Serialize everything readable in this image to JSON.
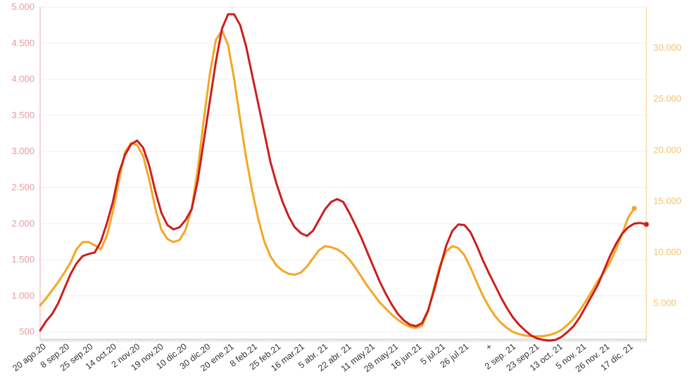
{
  "chart_data": {
    "type": "line",
    "title": "",
    "xlabel": "",
    "ylabel": "",
    "y2label": "",
    "grid": true,
    "legend": "none",
    "x_tick_labels": [
      "20 ago.20",
      "8 sep.20",
      "25 sep.20",
      "14 oct.20",
      "2 nov.20",
      "19 nov.20",
      "10 dic.20",
      "30 dic.20",
      "20 ene.21",
      "8 feb.21",
      "25 feb.21",
      "16 mar.21",
      "5 abr. 21",
      "22 abr. 21",
      "11 may.21",
      "28 may.21",
      "16 jun.21",
      "5 jul.21",
      "26 jul.21",
      "+",
      "2 sep. 21",
      "23 sep.21",
      "13 oct. 21",
      "5 nov. 21",
      "26 nov. 21",
      "17 dic. 21"
    ],
    "y_left": {
      "ticks": [
        500,
        1000,
        1500,
        2000,
        2500,
        3000,
        3500,
        4000,
        4500,
        5000
      ],
      "tick_labels": [
        "500",
        "1.000",
        "1.500",
        "2.000",
        "2.500",
        "3.000",
        "3.500",
        "4.000",
        "4.500",
        "5.000"
      ],
      "ylim": [
        400,
        5000
      ],
      "color": "#e89aa0"
    },
    "y_right": {
      "ticks": [
        5000,
        10000,
        15000,
        20000,
        25000,
        30000
      ],
      "tick_labels": [
        "5.000",
        "10.000",
        "15.000",
        "20.000",
        "25.000",
        "30.000"
      ],
      "ylim": [
        1500,
        34000
      ],
      "color": "#f5c46e"
    },
    "x_range": [
      0,
      100
    ],
    "series": [
      {
        "axis": "left",
        "color": "#cc1e1e",
        "points": [
          [
            0,
            520
          ],
          [
            1,
            650
          ],
          [
            2,
            750
          ],
          [
            3,
            900
          ],
          [
            4,
            1100
          ],
          [
            5,
            1300
          ],
          [
            6,
            1450
          ],
          [
            7,
            1550
          ],
          [
            8,
            1580
          ],
          [
            9,
            1600
          ],
          [
            10,
            1750
          ],
          [
            11,
            2000
          ],
          [
            12,
            2300
          ],
          [
            13,
            2700
          ],
          [
            14,
            2950
          ],
          [
            15,
            3100
          ],
          [
            16,
            3150
          ],
          [
            17,
            3050
          ],
          [
            18,
            2800
          ],
          [
            19,
            2450
          ],
          [
            20,
            2150
          ],
          [
            21,
            1980
          ],
          [
            22,
            1920
          ],
          [
            23,
            1950
          ],
          [
            24,
            2050
          ],
          [
            25,
            2200
          ],
          [
            26,
            2600
          ],
          [
            27,
            3150
          ],
          [
            28,
            3700
          ],
          [
            29,
            4250
          ],
          [
            30,
            4700
          ],
          [
            31,
            4900
          ],
          [
            32,
            4900
          ],
          [
            33,
            4750
          ],
          [
            34,
            4450
          ],
          [
            35,
            4050
          ],
          [
            36,
            3650
          ],
          [
            37,
            3250
          ],
          [
            38,
            2850
          ],
          [
            39,
            2550
          ],
          [
            40,
            2300
          ],
          [
            41,
            2100
          ],
          [
            42,
            1950
          ],
          [
            43,
            1870
          ],
          [
            44,
            1830
          ],
          [
            45,
            1900
          ],
          [
            46,
            2050
          ],
          [
            47,
            2200
          ],
          [
            48,
            2300
          ],
          [
            49,
            2340
          ],
          [
            50,
            2300
          ],
          [
            51,
            2150
          ],
          [
            52,
            1980
          ],
          [
            53,
            1800
          ],
          [
            54,
            1600
          ],
          [
            55,
            1400
          ],
          [
            56,
            1200
          ],
          [
            57,
            1030
          ],
          [
            58,
            880
          ],
          [
            59,
            750
          ],
          [
            60,
            660
          ],
          [
            61,
            600
          ],
          [
            62,
            580
          ],
          [
            63,
            620
          ],
          [
            64,
            800
          ],
          [
            65,
            1080
          ],
          [
            66,
            1400
          ],
          [
            67,
            1700
          ],
          [
            68,
            1900
          ],
          [
            69,
            1990
          ],
          [
            70,
            1980
          ],
          [
            71,
            1880
          ],
          [
            72,
            1700
          ],
          [
            73,
            1500
          ],
          [
            74,
            1320
          ],
          [
            75,
            1150
          ],
          [
            76,
            980
          ],
          [
            77,
            830
          ],
          [
            78,
            700
          ],
          [
            79,
            600
          ],
          [
            80,
            520
          ],
          [
            81,
            450
          ],
          [
            82,
            410
          ],
          [
            83,
            390
          ],
          [
            84,
            380
          ],
          [
            85,
            390
          ],
          [
            86,
            430
          ],
          [
            87,
            500
          ],
          [
            88,
            580
          ],
          [
            89,
            700
          ],
          [
            90,
            850
          ],
          [
            91,
            1000
          ],
          [
            92,
            1150
          ],
          [
            93,
            1350
          ],
          [
            94,
            1550
          ],
          [
            95,
            1720
          ],
          [
            96,
            1860
          ],
          [
            97,
            1950
          ],
          [
            98,
            2000
          ],
          [
            99,
            2010
          ],
          [
            100,
            1990
          ]
        ]
      },
      {
        "axis": "right",
        "color": "#f5a623",
        "points": [
          [
            0,
            4800
          ],
          [
            1,
            5500
          ],
          [
            2,
            6300
          ],
          [
            3,
            7100
          ],
          [
            4,
            8000
          ],
          [
            5,
            9000
          ],
          [
            6,
            10300
          ],
          [
            7,
            11000
          ],
          [
            8,
            11000
          ],
          [
            9,
            10700
          ],
          [
            10,
            10300
          ],
          [
            11,
            11600
          ],
          [
            12,
            14000
          ],
          [
            13,
            17000
          ],
          [
            14,
            19800
          ],
          [
            15,
            20700
          ],
          [
            16,
            20500
          ],
          [
            17,
            19400
          ],
          [
            18,
            17100
          ],
          [
            19,
            14300
          ],
          [
            20,
            12200
          ],
          [
            21,
            11300
          ],
          [
            22,
            11000
          ],
          [
            23,
            11200
          ],
          [
            24,
            12200
          ],
          [
            25,
            14300
          ],
          [
            26,
            18100
          ],
          [
            27,
            23000
          ],
          [
            28,
            27500
          ],
          [
            29,
            30800
          ],
          [
            30,
            31700
          ],
          [
            31,
            30300
          ],
          [
            32,
            27000
          ],
          [
            33,
            23000
          ],
          [
            34,
            19200
          ],
          [
            35,
            16000
          ],
          [
            36,
            13200
          ],
          [
            37,
            11000
          ],
          [
            38,
            9600
          ],
          [
            39,
            8700
          ],
          [
            40,
            8200
          ],
          [
            41,
            7900
          ],
          [
            42,
            7800
          ],
          [
            43,
            8000
          ],
          [
            44,
            8600
          ],
          [
            45,
            9400
          ],
          [
            46,
            10200
          ],
          [
            47,
            10600
          ],
          [
            48,
            10500
          ],
          [
            49,
            10300
          ],
          [
            50,
            9900
          ],
          [
            51,
            9300
          ],
          [
            52,
            8500
          ],
          [
            53,
            7600
          ],
          [
            54,
            6700
          ],
          [
            55,
            5900
          ],
          [
            56,
            5100
          ],
          [
            57,
            4500
          ],
          [
            58,
            3900
          ],
          [
            59,
            3400
          ],
          [
            60,
            3000
          ],
          [
            61,
            2700
          ],
          [
            62,
            2600
          ],
          [
            63,
            2800
          ],
          [
            64,
            4200
          ],
          [
            65,
            6600
          ],
          [
            66,
            8800
          ],
          [
            67,
            10100
          ],
          [
            68,
            10600
          ],
          [
            69,
            10400
          ],
          [
            70,
            9700
          ],
          [
            71,
            8500
          ],
          [
            72,
            7100
          ],
          [
            73,
            5800
          ],
          [
            74,
            4700
          ],
          [
            75,
            3800
          ],
          [
            76,
            3100
          ],
          [
            77,
            2600
          ],
          [
            78,
            2200
          ],
          [
            79,
            2000
          ],
          [
            80,
            1850
          ],
          [
            81,
            1800
          ],
          [
            82,
            1780
          ],
          [
            83,
            1800
          ],
          [
            84,
            1900
          ],
          [
            85,
            2100
          ],
          [
            86,
            2400
          ],
          [
            87,
            2900
          ],
          [
            88,
            3500
          ],
          [
            89,
            4300
          ],
          [
            90,
            5200
          ],
          [
            91,
            6200
          ],
          [
            92,
            7200
          ],
          [
            93,
            8000
          ],
          [
            94,
            9000
          ],
          [
            95,
            10300
          ],
          [
            96,
            11800
          ],
          [
            97,
            13400
          ],
          [
            98,
            14300
          ]
        ]
      }
    ]
  }
}
